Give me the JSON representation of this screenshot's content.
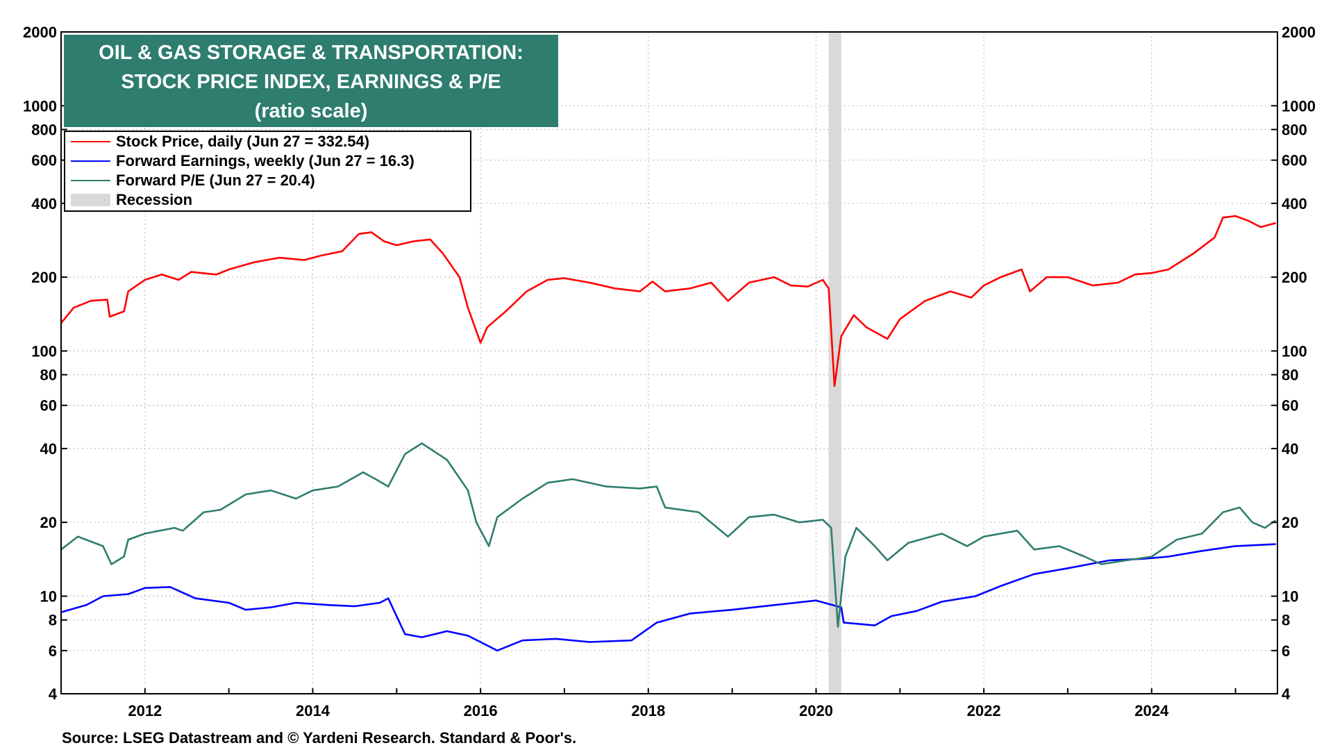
{
  "title": {
    "line1": "OIL & GAS STORAGE & TRANSPORTATION:",
    "line2": "STOCK PRICE INDEX, EARNINGS & P/E",
    "line3": "(ratio scale)",
    "background_color": "#2e7d6e"
  },
  "legend": [
    {
      "label": "Stock Price, daily (Jun 27 = 332.54)",
      "color": "#ff0000",
      "kind": "line"
    },
    {
      "label": "Forward Earnings, weekly (Jun 27 = 16.3)",
      "color": "#0000ff",
      "kind": "line"
    },
    {
      "label": "Forward P/E (Jun 27 = 20.4)",
      "color": "#2e7d6e",
      "kind": "line"
    },
    {
      "label": "Recession",
      "color": "#d9d9d9",
      "kind": "band"
    }
  ],
  "source": "Source: LSEG Datastream and © Yardeni Research. Standard & Poor's.",
  "chart_data": {
    "type": "line",
    "y_scale": "log",
    "ylim": [
      4,
      2000
    ],
    "xlim": [
      2011.0,
      2025.5
    ],
    "y_ticks": [
      4,
      6,
      8,
      10,
      20,
      40,
      60,
      80,
      100,
      200,
      400,
      600,
      800,
      1000,
      2000
    ],
    "y_tick_labels": [
      "4",
      "6",
      "8",
      "10",
      "20",
      "40",
      "60",
      "80",
      "100",
      "200",
      "400",
      "600",
      "800",
      "1000",
      "2000"
    ],
    "x_ticks": [
      2012,
      2014,
      2016,
      2018,
      2020,
      2022,
      2024
    ],
    "x_tick_labels": [
      "2012",
      "2014",
      "2016",
      "2018",
      "2020",
      "2022",
      "2024"
    ],
    "grid": "dotted",
    "legend_position": "top-left",
    "recessions": [
      {
        "start": 2020.15,
        "end": 2020.3
      }
    ],
    "series": [
      {
        "name": "Stock Price, daily",
        "color": "#ff0000",
        "points": [
          [
            2011.0,
            130
          ],
          [
            2011.15,
            150
          ],
          [
            2011.35,
            160
          ],
          [
            2011.55,
            162
          ],
          [
            2011.58,
            138
          ],
          [
            2011.75,
            145
          ],
          [
            2011.8,
            175
          ],
          [
            2012.0,
            195
          ],
          [
            2012.2,
            205
          ],
          [
            2012.4,
            195
          ],
          [
            2012.55,
            210
          ],
          [
            2012.85,
            205
          ],
          [
            2013.0,
            215
          ],
          [
            2013.3,
            230
          ],
          [
            2013.6,
            240
          ],
          [
            2013.9,
            235
          ],
          [
            2014.1,
            245
          ],
          [
            2014.35,
            255
          ],
          [
            2014.55,
            300
          ],
          [
            2014.7,
            305
          ],
          [
            2014.85,
            280
          ],
          [
            2015.0,
            270
          ],
          [
            2015.2,
            280
          ],
          [
            2015.4,
            285
          ],
          [
            2015.55,
            250
          ],
          [
            2015.75,
            200
          ],
          [
            2015.85,
            150
          ],
          [
            2016.0,
            108
          ],
          [
            2016.08,
            125
          ],
          [
            2016.3,
            145
          ],
          [
            2016.55,
            175
          ],
          [
            2016.8,
            195
          ],
          [
            2017.0,
            198
          ],
          [
            2017.3,
            190
          ],
          [
            2017.6,
            180
          ],
          [
            2017.9,
            175
          ],
          [
            2018.05,
            192
          ],
          [
            2018.2,
            175
          ],
          [
            2018.5,
            180
          ],
          [
            2018.75,
            190
          ],
          [
            2018.95,
            160
          ],
          [
            2019.2,
            190
          ],
          [
            2019.5,
            200
          ],
          [
            2019.7,
            185
          ],
          [
            2019.9,
            183
          ],
          [
            2020.08,
            195
          ],
          [
            2020.15,
            180
          ],
          [
            2020.22,
            72
          ],
          [
            2020.3,
            115
          ],
          [
            2020.45,
            140
          ],
          [
            2020.6,
            125
          ],
          [
            2020.85,
            112
          ],
          [
            2021.0,
            135
          ],
          [
            2021.3,
            160
          ],
          [
            2021.6,
            175
          ],
          [
            2021.85,
            165
          ],
          [
            2022.0,
            185
          ],
          [
            2022.2,
            200
          ],
          [
            2022.45,
            215
          ],
          [
            2022.55,
            175
          ],
          [
            2022.75,
            200
          ],
          [
            2023.0,
            200
          ],
          [
            2023.3,
            185
          ],
          [
            2023.6,
            190
          ],
          [
            2023.8,
            205
          ],
          [
            2024.0,
            208
          ],
          [
            2024.2,
            215
          ],
          [
            2024.5,
            250
          ],
          [
            2024.75,
            290
          ],
          [
            2024.85,
            350
          ],
          [
            2025.0,
            355
          ],
          [
            2025.15,
            340
          ],
          [
            2025.3,
            320
          ],
          [
            2025.48,
            332.54
          ]
        ]
      },
      {
        "name": "Forward Earnings, weekly",
        "color": "#0000ff",
        "points": [
          [
            2011.0,
            8.6
          ],
          [
            2011.3,
            9.2
          ],
          [
            2011.5,
            10.0
          ],
          [
            2011.8,
            10.2
          ],
          [
            2012.0,
            10.8
          ],
          [
            2012.3,
            10.9
          ],
          [
            2012.6,
            9.8
          ],
          [
            2013.0,
            9.4
          ],
          [
            2013.2,
            8.8
          ],
          [
            2013.5,
            9.0
          ],
          [
            2013.8,
            9.4
          ],
          [
            2014.2,
            9.2
          ],
          [
            2014.5,
            9.1
          ],
          [
            2014.8,
            9.4
          ],
          [
            2014.9,
            9.8
          ],
          [
            2015.1,
            7.0
          ],
          [
            2015.3,
            6.8
          ],
          [
            2015.6,
            7.2
          ],
          [
            2015.85,
            6.9
          ],
          [
            2016.2,
            6.0
          ],
          [
            2016.5,
            6.6
          ],
          [
            2016.9,
            6.7
          ],
          [
            2017.3,
            6.5
          ],
          [
            2017.8,
            6.6
          ],
          [
            2018.1,
            7.8
          ],
          [
            2018.5,
            8.5
          ],
          [
            2019.0,
            8.8
          ],
          [
            2019.5,
            9.2
          ],
          [
            2020.0,
            9.6
          ],
          [
            2020.3,
            9.0
          ],
          [
            2020.33,
            7.8
          ],
          [
            2020.7,
            7.6
          ],
          [
            2020.9,
            8.3
          ],
          [
            2021.2,
            8.7
          ],
          [
            2021.5,
            9.5
          ],
          [
            2021.9,
            10.0
          ],
          [
            2022.2,
            11.0
          ],
          [
            2022.6,
            12.3
          ],
          [
            2023.0,
            13.0
          ],
          [
            2023.5,
            14.0
          ],
          [
            2023.9,
            14.2
          ],
          [
            2024.2,
            14.5
          ],
          [
            2024.6,
            15.3
          ],
          [
            2025.0,
            16.0
          ],
          [
            2025.48,
            16.3
          ]
        ]
      },
      {
        "name": "Forward P/E",
        "color": "#2e7d6e",
        "points": [
          [
            2011.0,
            15.5
          ],
          [
            2011.2,
            17.5
          ],
          [
            2011.5,
            16.0
          ],
          [
            2011.6,
            13.5
          ],
          [
            2011.75,
            14.5
          ],
          [
            2011.8,
            17.0
          ],
          [
            2012.0,
            18.0
          ],
          [
            2012.35,
            19.0
          ],
          [
            2012.45,
            18.5
          ],
          [
            2012.7,
            22.0
          ],
          [
            2012.9,
            22.5
          ],
          [
            2013.2,
            26.0
          ],
          [
            2013.5,
            27.0
          ],
          [
            2013.8,
            25.0
          ],
          [
            2014.0,
            27.0
          ],
          [
            2014.3,
            28.0
          ],
          [
            2014.6,
            32.0
          ],
          [
            2014.75,
            30.0
          ],
          [
            2014.9,
            28.0
          ],
          [
            2015.1,
            38.0
          ],
          [
            2015.3,
            42.0
          ],
          [
            2015.6,
            36.0
          ],
          [
            2015.85,
            27.0
          ],
          [
            2015.95,
            20.0
          ],
          [
            2016.1,
            16.0
          ],
          [
            2016.2,
            21.0
          ],
          [
            2016.5,
            25.0
          ],
          [
            2016.8,
            29.0
          ],
          [
            2017.1,
            30.0
          ],
          [
            2017.5,
            28.0
          ],
          [
            2017.9,
            27.5
          ],
          [
            2018.1,
            28.0
          ],
          [
            2018.2,
            23.0
          ],
          [
            2018.6,
            22.0
          ],
          [
            2018.95,
            17.5
          ],
          [
            2019.2,
            21.0
          ],
          [
            2019.5,
            21.5
          ],
          [
            2019.8,
            20.0
          ],
          [
            2020.08,
            20.5
          ],
          [
            2020.18,
            19.0
          ],
          [
            2020.26,
            7.5
          ],
          [
            2020.35,
            14.5
          ],
          [
            2020.48,
            19.0
          ],
          [
            2020.7,
            16.0
          ],
          [
            2020.85,
            14.0
          ],
          [
            2021.1,
            16.5
          ],
          [
            2021.5,
            18.0
          ],
          [
            2021.8,
            16.0
          ],
          [
            2022.0,
            17.5
          ],
          [
            2022.4,
            18.5
          ],
          [
            2022.6,
            15.5
          ],
          [
            2022.9,
            16.0
          ],
          [
            2023.2,
            14.5
          ],
          [
            2023.4,
            13.5
          ],
          [
            2023.7,
            14.0
          ],
          [
            2024.0,
            14.5
          ],
          [
            2024.3,
            17.0
          ],
          [
            2024.6,
            18.0
          ],
          [
            2024.85,
            22.0
          ],
          [
            2025.05,
            23.0
          ],
          [
            2025.2,
            20.0
          ],
          [
            2025.35,
            19.0
          ],
          [
            2025.48,
            20.4
          ]
        ]
      }
    ]
  }
}
